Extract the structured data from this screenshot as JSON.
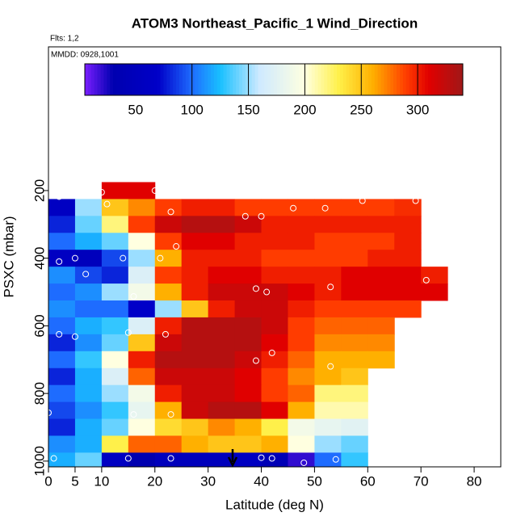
{
  "chart_data": {
    "type": "heatmap",
    "title": "ATOM3 Northeast_Pacific_1 Wind_Direction",
    "subtitle": "Flts: 1,2",
    "annotation": "MMDD: 0928,1001",
    "x_label": "Latitude (deg N)",
    "y_label": "PSXC (mbar)",
    "xlim": [
      0,
      85
    ],
    "xticks": [
      0,
      5,
      10,
      20,
      30,
      40,
      50,
      60,
      70,
      80
    ],
    "ylim": [
      1017,
      -225
    ],
    "yticks": [
      200,
      400,
      600,
      800,
      1000
    ],
    "x_edges": [
      0,
      5,
      10,
      15,
      20,
      25,
      30,
      35,
      40,
      45,
      50,
      55,
      60,
      65,
      70,
      75
    ],
    "y_edges": [
      175,
      225,
      275,
      325,
      375,
      425,
      475,
      525,
      575,
      625,
      675,
      725,
      775,
      825,
      875,
      925,
      975,
      1025
    ],
    "z": [
      [
        null,
        null,
        310,
        310,
        null,
        null,
        null,
        null,
        null,
        null,
        null,
        null,
        null,
        null,
        null
      ],
      [
        60,
        150,
        250,
        270,
        290,
        300,
        300,
        290,
        290,
        290,
        290,
        290,
        290,
        295,
        null
      ],
      [
        80,
        140,
        220,
        290,
        320,
        330,
        330,
        320,
        300,
        300,
        300,
        300,
        300,
        300,
        null
      ],
      [
        100,
        120,
        140,
        200,
        290,
        310,
        310,
        300,
        300,
        300,
        290,
        290,
        290,
        300,
        null
      ],
      [
        60,
        50,
        90,
        150,
        260,
        300,
        300,
        300,
        290,
        290,
        290,
        290,
        300,
        300,
        null
      ],
      [
        110,
        90,
        80,
        170,
        290,
        300,
        310,
        310,
        300,
        300,
        300,
        310,
        310,
        310,
        300
      ],
      [
        100,
        110,
        150,
        190,
        260,
        300,
        320,
        320,
        320,
        310,
        300,
        310,
        310,
        310,
        310
      ],
      [
        110,
        100,
        100,
        70,
        150,
        250,
        300,
        320,
        320,
        300,
        290,
        290,
        290,
        290,
        null
      ],
      [
        100,
        120,
        130,
        170,
        300,
        330,
        330,
        330,
        320,
        290,
        280,
        280,
        280,
        null,
        null
      ],
      [
        80,
        110,
        140,
        250,
        320,
        330,
        330,
        330,
        310,
        290,
        270,
        270,
        270,
        null,
        null
      ],
      [
        100,
        130,
        200,
        300,
        330,
        330,
        330,
        320,
        300,
        280,
        260,
        260,
        260,
        null,
        null
      ],
      [
        80,
        120,
        170,
        280,
        320,
        320,
        320,
        310,
        290,
        270,
        260,
        250,
        null,
        null,
        null
      ],
      [
        100,
        120,
        150,
        190,
        300,
        320,
        320,
        310,
        290,
        280,
        220,
        220,
        null,
        null,
        null
      ],
      [
        90,
        110,
        130,
        180,
        260,
        320,
        330,
        330,
        310,
        260,
        210,
        210,
        null,
        null,
        null
      ],
      [
        80,
        120,
        140,
        200,
        240,
        250,
        270,
        260,
        230,
        190,
        180,
        175,
        null,
        null,
        null
      ],
      [
        110,
        120,
        230,
        280,
        280,
        260,
        250,
        250,
        260,
        200,
        150,
        140,
        null,
        null,
        null
      ],
      [
        120,
        140,
        60,
        30,
        50,
        50,
        50,
        60,
        40,
        20,
        100,
        130,
        null,
        null,
        null
      ]
    ],
    "points": {
      "x": [
        2,
        10,
        20,
        11,
        23,
        37,
        40,
        46,
        52,
        59,
        69,
        2,
        5,
        7,
        14,
        21,
        24,
        16,
        39,
        41,
        53,
        71,
        2,
        5,
        15,
        22,
        42,
        39,
        53,
        0,
        16,
        23,
        1,
        15,
        23,
        40,
        42,
        48,
        54
      ],
      "y": [
        218,
        205,
        200,
        240,
        263,
        276,
        276,
        252,
        252,
        230,
        230,
        410,
        400,
        447,
        400,
        400,
        365,
        513,
        490,
        500,
        485,
        465,
        625,
        632,
        620,
        625,
        680,
        703,
        720,
        857,
        862,
        862,
        992,
        992,
        992,
        990,
        992,
        1005,
        995
      ]
    },
    "colorbar": {
      "lim": [
        5,
        340
      ],
      "ticks": [
        50,
        100,
        150,
        200,
        250,
        300
      ],
      "colors": [
        [
          5,
          "#7a1fff"
        ],
        [
          30,
          "#0000b0"
        ],
        [
          70,
          "#0000c8"
        ],
        [
          100,
          "#1e6cff"
        ],
        [
          125,
          "#19c0ff"
        ],
        [
          160,
          "#cfeaff"
        ],
        [
          200,
          "#ffffe0"
        ],
        [
          230,
          "#fff04a"
        ],
        [
          260,
          "#ffb000"
        ],
        [
          290,
          "#ff3c00"
        ],
        [
          310,
          "#e00000"
        ],
        [
          340,
          "#a01818"
        ]
      ]
    }
  }
}
